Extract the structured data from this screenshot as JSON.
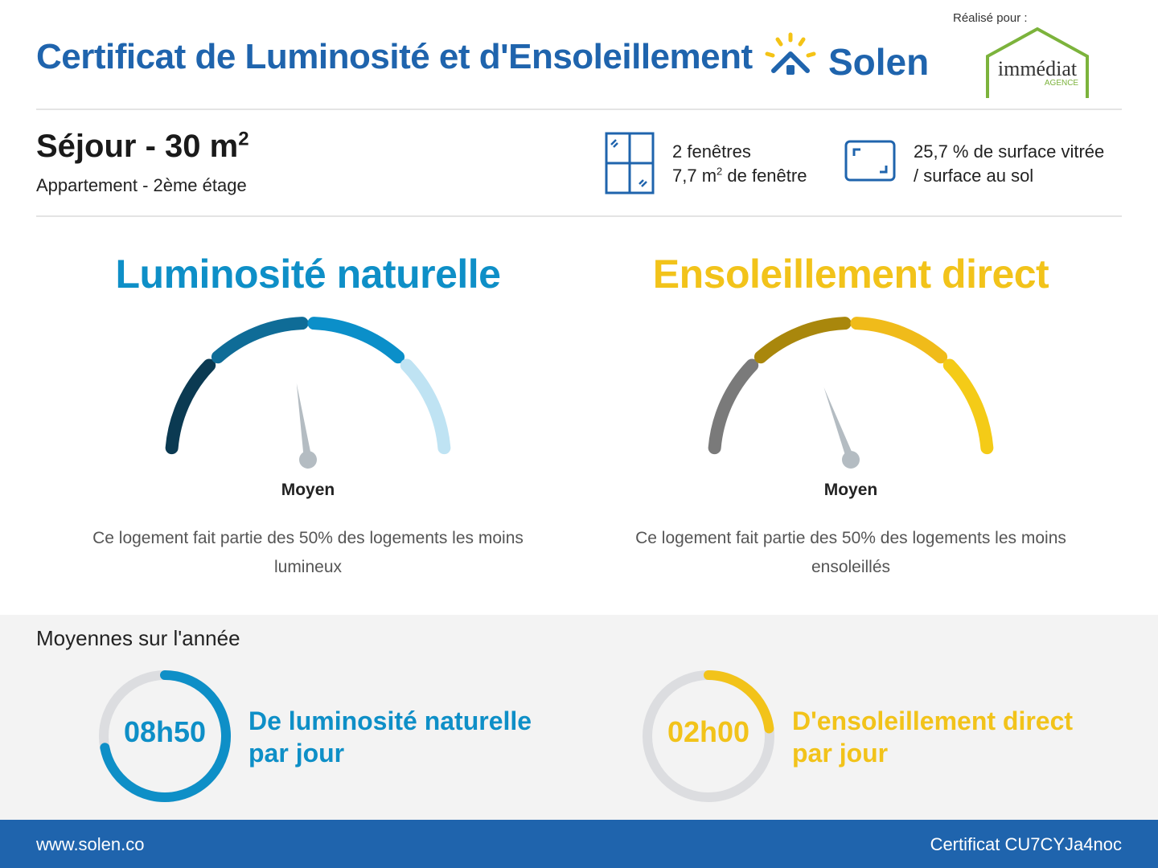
{
  "header": {
    "title": "Certificat de Luminosité et d'Ensoleillement",
    "brand": "Solen",
    "realise_pour": "Réalisé pour :",
    "agency_name": "immédiat",
    "agency_sub": "AGENCE",
    "brand_color": "#1f64ad"
  },
  "room": {
    "title": "Séjour - 30 m",
    "title_sup": "2",
    "subtitle": "Appartement - 2ème étage",
    "windows_count": "2 fenêtres",
    "window_area": "7,7 m",
    "window_area_sup": "2",
    "window_area_suffix": " de fenêtre",
    "glazing_line1": "25,7 % de surface vitrée",
    "glazing_line2": "/ surface au sol"
  },
  "luminosity": {
    "heading": "Luminosité naturelle",
    "level": "Moyen",
    "description": "Ce logement fait partie des 50% des logements les moins lumineux",
    "color": "#0e8fc7",
    "segment_colors": [
      "#0b3a52",
      "#0f6c97",
      "#0b8fc9",
      "#bfe3f3"
    ],
    "needle_value": 0.45
  },
  "sunlight": {
    "heading": "Ensoleillement direct",
    "level": "Moyen",
    "description": "Ce logement fait partie des 50% des logements les moins ensoleillés",
    "color": "#f2c31a",
    "segment_colors": [
      "#7a7a7a",
      "#a9870c",
      "#f0bb1a",
      "#f4cb17"
    ],
    "needle_value": 0.38
  },
  "averages": {
    "title": "Moyennes sur l'année",
    "luminosity_value": "08h50",
    "luminosity_label_line1": "De luminosité naturelle",
    "luminosity_label_line2": "par jour",
    "luminosity_fraction": 0.72,
    "sunlight_value": "02h00",
    "sunlight_label_line1": "D'ensoleillement direct",
    "sunlight_label_line2": "par jour",
    "sunlight_fraction": 0.23,
    "track_color": "#dcdde0"
  },
  "footer": {
    "url": "www.solen.co",
    "certificate": "Certificat CU7CYJa4noc"
  }
}
